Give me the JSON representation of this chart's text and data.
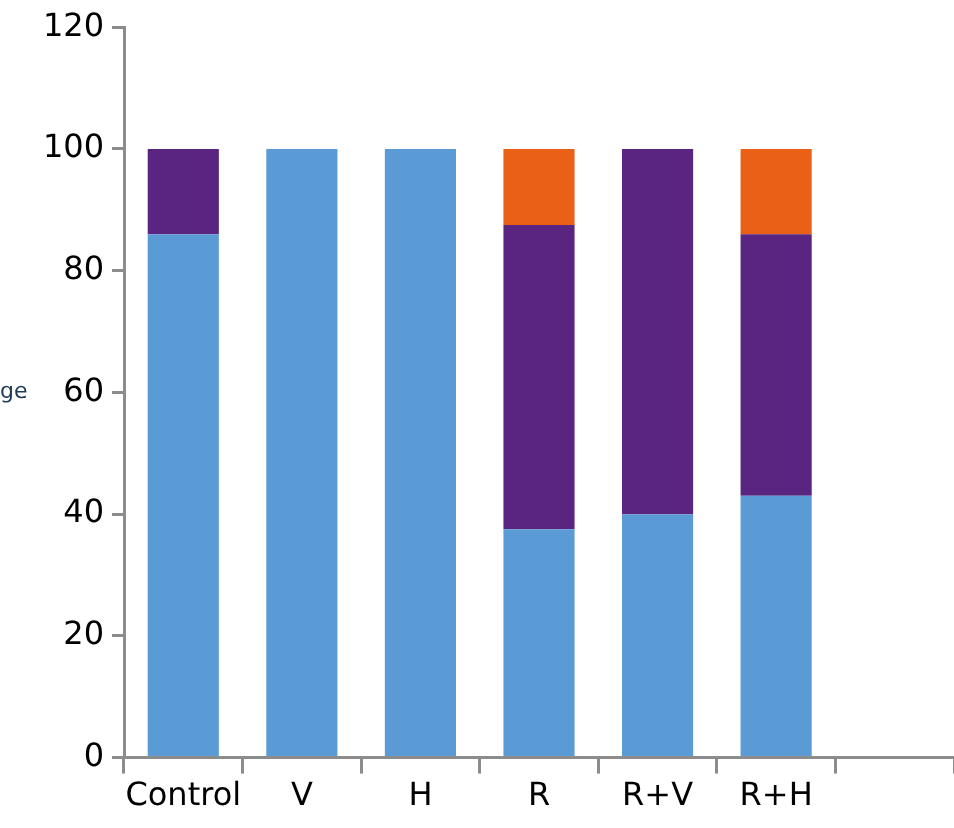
{
  "chart_data": {
    "type": "bar",
    "ylabel": "ge",
    "categories": [
      "Control",
      "V",
      "H",
      "R",
      "R+V",
      "R+H",
      null
    ],
    "stacked": true,
    "series": [
      {
        "color": "#5b9bd5",
        "values": [
          86,
          100,
          100,
          37.5,
          40,
          43,
          null
        ]
      },
      {
        "color": "#5a2580",
        "values": [
          14,
          null,
          null,
          50,
          60,
          43,
          null
        ]
      },
      {
        "color": "#eb6017",
        "values": [
          null,
          null,
          null,
          12.5,
          null,
          14,
          null
        ]
      }
    ],
    "ylim": [
      0,
      120
    ],
    "yticks": [
      0,
      20,
      40,
      60,
      80,
      100,
      120
    ],
    "grid": false,
    "legend": false
  }
}
